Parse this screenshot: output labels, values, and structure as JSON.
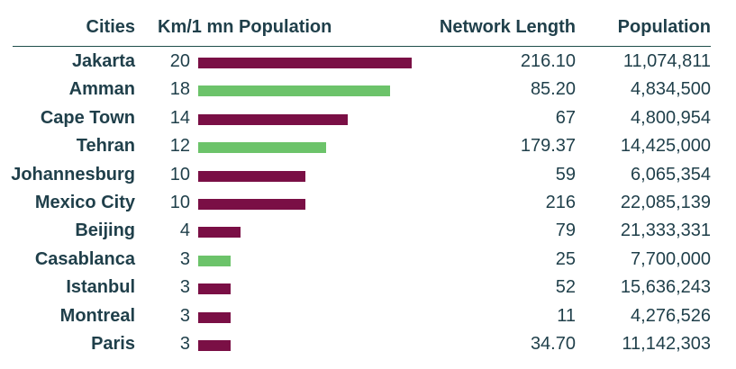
{
  "headers": {
    "cities": "Cities",
    "km": "Km/1 mn Population",
    "network": "Network Length",
    "population": "Population"
  },
  "colors": {
    "purple": "#7a0f45",
    "green": "#6cc36a",
    "text": "#1f3f4a"
  },
  "chart_data": {
    "type": "bar",
    "orientation": "horizontal",
    "categories": [
      "Jakarta",
      "Amman",
      "Cape Town",
      "Tehran",
      "Johannesburg",
      "Mexico City",
      "Beijing",
      "Casablanca",
      "Istanbul",
      "Montreal",
      "Paris"
    ],
    "values": [
      20,
      18,
      14,
      12,
      10,
      10,
      4,
      3,
      3,
      3,
      3
    ],
    "bar_colors": [
      "purple",
      "green",
      "purple",
      "green",
      "purple",
      "purple",
      "purple",
      "green",
      "purple",
      "purple",
      "purple"
    ],
    "xlim": [
      0,
      20
    ],
    "network_length": [
      "216.10",
      "85.20",
      "67",
      "179.37",
      "59",
      "216",
      "79",
      "25",
      "52",
      "11",
      "34.70"
    ],
    "population": [
      "11,074,811",
      "4,834,500",
      "4,800,954",
      "14,425,000",
      "6,065,354",
      "22,085,139",
      "21,333,331",
      "7,700,000",
      "15,636,243",
      "4,276,526",
      "11,142,303"
    ]
  }
}
